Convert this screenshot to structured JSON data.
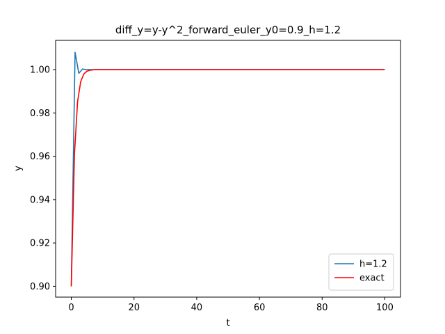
{
  "chart_data": {
    "type": "line",
    "title": "diff_y=y-y^2_forward_euler_y0=0.9_h=1.2",
    "xlabel": "t",
    "ylabel": "y",
    "xlim": [
      -5,
      105
    ],
    "ylim": [
      0.895,
      1.0135
    ],
    "xticks": [
      0,
      20,
      40,
      60,
      80,
      100
    ],
    "xtick_labels": [
      "0",
      "20",
      "40",
      "60",
      "80",
      "100"
    ],
    "yticks": [
      0.9,
      0.92,
      0.94,
      0.96,
      0.98,
      1.0
    ],
    "ytick_labels": [
      "0.90",
      "0.92",
      "0.94",
      "0.96",
      "0.98",
      "1.00"
    ],
    "grid": false,
    "legend_position": "lower-right",
    "series": [
      {
        "name": "h=1.2",
        "color": "#1f77b4",
        "x": [
          0,
          1.2,
          2.4,
          3.6,
          4.8,
          6.0,
          7.2,
          8.4,
          9.6,
          10.8,
          20,
          40,
          60,
          80,
          99.6
        ],
        "y": [
          0.9,
          1.008,
          0.9983,
          1.0003,
          0.99994,
          1.00001,
          1.0,
          1.0,
          1.0,
          1.0,
          1.0,
          1.0,
          1.0,
          1.0,
          1.0
        ]
      },
      {
        "name": "exact",
        "color": "#ff0000",
        "x": [
          0,
          1,
          2,
          3,
          4,
          5,
          6,
          7,
          8,
          9,
          10,
          20,
          40,
          60,
          80,
          100
        ],
        "y": [
          0.9,
          0.9607,
          0.9852,
          0.9945,
          0.998,
          0.9993,
          0.9997,
          0.9999,
          1.0,
          1.0,
          1.0,
          1.0,
          1.0,
          1.0,
          1.0,
          1.0
        ]
      }
    ]
  }
}
